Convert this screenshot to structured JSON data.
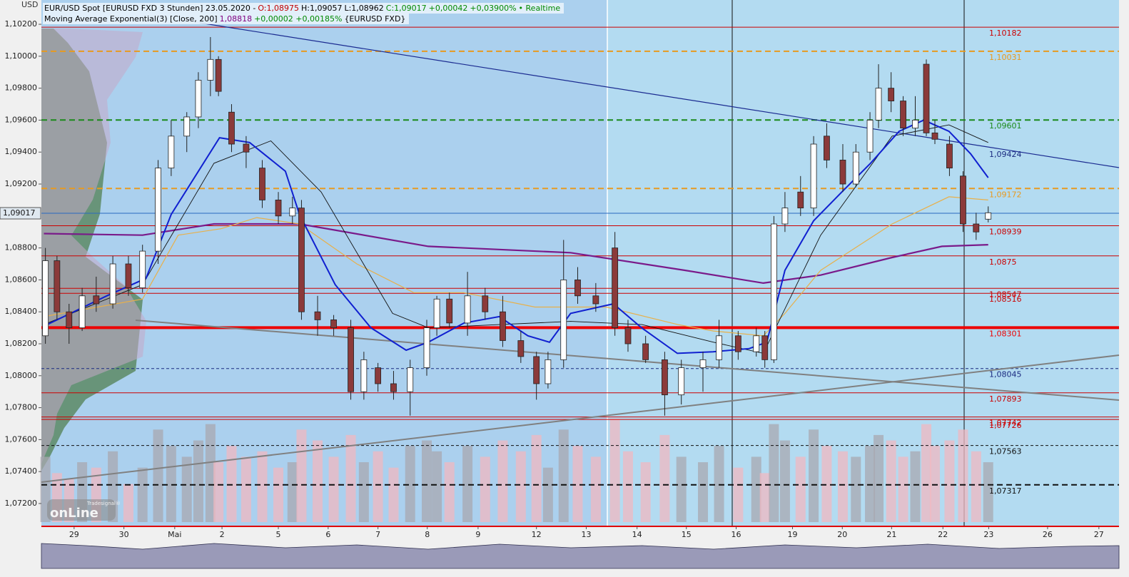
{
  "chart_data": {
    "type": "candlestick",
    "currency": "USD",
    "legend_lines": [
      [
        {
          "text": "EUR/USD Spot [EURUSD FXD 3 Stunden] 23.05.2020 -",
          "color": "#000000"
        },
        {
          "text": "O:1,08975",
          "color": "#c00000"
        },
        {
          "text": "H:1,09057",
          "color": "#000000"
        },
        {
          "text": "L:1,08962",
          "color": "#000000"
        },
        {
          "text": "C:1,09017",
          "color": "#008a00"
        },
        {
          "text": "+0,00042",
          "color": "#008a00"
        },
        {
          "text": "+0,03900%",
          "color": "#008a00"
        },
        {
          "text": "• Realtime",
          "color": "#008a00"
        }
      ],
      [
        {
          "text": "Moving Average Exponential(3) [Close, 200]",
          "color": "#000000"
        },
        {
          "text": "1,08818",
          "color": "#800080"
        },
        {
          "text": "+0,00002 +0,00185%",
          "color": "#008a00"
        },
        {
          "text": "{EURUSD FXD}",
          "color": "#000000"
        }
      ]
    ],
    "ylim": [
      1.07057,
      1.10352
    ],
    "yticks": [
      {
        "value": 1.102,
        "label": "1,10200"
      },
      {
        "value": 1.1,
        "label": "1,10000"
      },
      {
        "value": 1.098,
        "label": "1,09800"
      },
      {
        "value": 1.096,
        "label": "1,09600"
      },
      {
        "value": 1.094,
        "label": "1,09400"
      },
      {
        "value": 1.092,
        "label": "1,09200"
      },
      {
        "value": 1.088,
        "label": "1,08800"
      },
      {
        "value": 1.086,
        "label": "1,08600"
      },
      {
        "value": 1.084,
        "label": "1,08400"
      },
      {
        "value": 1.082,
        "label": "1,08200"
      },
      {
        "value": 1.08,
        "label": "1,08000"
      },
      {
        "value": 1.078,
        "label": "1,07800"
      },
      {
        "value": 1.076,
        "label": "1,07600"
      },
      {
        "value": 1.074,
        "label": "1,07400"
      },
      {
        "value": 1.072,
        "label": "1,07200"
      }
    ],
    "xlim": [
      -0.65,
      20.77
    ],
    "xticks": [
      {
        "value": 0,
        "label": "29"
      },
      {
        "value": 0.99,
        "label": "30"
      },
      {
        "value": 2.0,
        "label": "Mai"
      },
      {
        "value": 2.94,
        "label": "2"
      },
      {
        "value": 4.06,
        "label": "5"
      },
      {
        "value": 5.05,
        "label": "6"
      },
      {
        "value": 6.04,
        "label": "7"
      },
      {
        "value": 7.02,
        "label": "8"
      },
      {
        "value": 8.03,
        "label": "9"
      },
      {
        "value": 9.19,
        "label": "12"
      },
      {
        "value": 10.18,
        "label": "13"
      },
      {
        "value": 11.19,
        "label": "14"
      },
      {
        "value": 12.17,
        "label": "15"
      },
      {
        "value": 13.16,
        "label": "16"
      },
      {
        "value": 14.28,
        "label": "19"
      },
      {
        "value": 15.27,
        "label": "20"
      },
      {
        "value": 16.25,
        "label": "21"
      },
      {
        "value": 17.27,
        "label": "22"
      },
      {
        "value": 18.18,
        "label": "23"
      },
      {
        "value": 19.35,
        "label": "26"
      },
      {
        "value": 20.37,
        "label": "27"
      }
    ],
    "last_price": {
      "value": 1.09017,
      "label": "1,09017"
    },
    "up_color": "#ffffff",
    "down_color": "#8b3a3a",
    "x": [
      -0.57,
      -0.34,
      -0.1,
      0.16,
      0.44,
      0.77,
      1.08,
      1.36,
      1.67,
      1.93,
      2.24,
      2.47,
      2.71,
      2.87,
      3.13,
      3.42,
      3.74,
      4.06,
      4.34,
      4.52,
      4.84,
      5.16,
      5.5,
      5.76,
      6.04,
      6.35,
      6.68,
      7.01,
      7.21,
      7.46,
      7.82,
      8.17,
      8.52,
      8.88,
      9.19,
      9.42,
      9.73,
      10.01,
      10.37,
      10.75,
      11.01,
      11.36,
      11.74,
      12.07,
      12.5,
      12.82,
      13.2,
      13.56,
      13.73,
      13.91,
      14.13,
      14.44,
      14.7,
      14.96,
      15.28,
      15.54,
      15.82,
      15.99,
      16.24,
      16.48,
      16.72,
      16.94,
      17.11,
      17.4,
      17.67,
      17.93,
      18.17
    ],
    "open": [
      1.0825,
      1.0872,
      1.084,
      1.083,
      1.085,
      1.0845,
      1.087,
      1.0855,
      1.0878,
      1.093,
      1.095,
      1.0962,
      1.0985,
      1.0998,
      1.0965,
      1.0945,
      1.093,
      1.091,
      1.09,
      1.0905,
      1.084,
      1.0835,
      1.083,
      1.079,
      1.0805,
      1.0795,
      1.079,
      1.0805,
      1.083,
      1.0848,
      1.0833,
      1.085,
      1.084,
      1.0822,
      1.0812,
      1.0795,
      1.081,
      1.086,
      1.085,
      1.088,
      1.083,
      1.082,
      1.081,
      1.0788,
      1.0805,
      1.081,
      1.0825,
      1.0815,
      1.0825,
      1.081,
      1.0895,
      1.0915,
      1.0905,
      1.095,
      1.0935,
      1.092,
      1.094,
      1.096,
      1.098,
      1.0972,
      1.0955,
      1.0995,
      1.0952,
      1.0945,
      1.0925,
      1.0895,
      1.0898
    ],
    "high": [
      1.088,
      1.0875,
      1.0845,
      1.0855,
      1.0862,
      1.0875,
      1.0875,
      1.0882,
      1.0935,
      1.096,
      1.0965,
      1.099,
      1.1012,
      1.1,
      1.097,
      1.095,
      1.0935,
      1.0915,
      1.0912,
      1.091,
      1.085,
      1.0838,
      1.0835,
      1.0815,
      1.0808,
      1.0803,
      1.081,
      1.0835,
      1.085,
      1.0852,
      1.0865,
      1.0855,
      1.085,
      1.0828,
      1.0815,
      1.0815,
      1.0885,
      1.0868,
      1.0858,
      1.089,
      1.0835,
      1.0825,
      1.0815,
      1.081,
      1.0815,
      1.0835,
      1.0828,
      1.083,
      1.0828,
      1.09,
      1.0915,
      1.0925,
      1.095,
      1.0958,
      1.0945,
      1.0945,
      1.0965,
      1.0995,
      1.099,
      1.0975,
      1.0975,
      1.0998,
      1.096,
      1.095,
      1.0928,
      1.0902,
      1.0906
    ],
    "low": [
      1.082,
      1.0835,
      1.082,
      1.0828,
      1.084,
      1.0842,
      1.085,
      1.0852,
      1.087,
      1.0925,
      1.094,
      1.0955,
      1.0975,
      1.0975,
      1.094,
      1.093,
      1.0905,
      1.0895,
      1.0895,
      1.0835,
      1.0825,
      1.0825,
      1.0785,
      1.0785,
      1.079,
      1.0785,
      1.0775,
      1.08,
      1.0825,
      1.083,
      1.0825,
      1.0835,
      1.0818,
      1.0808,
      1.0785,
      1.0792,
      1.0805,
      1.0845,
      1.084,
      1.0825,
      1.0815,
      1.0808,
      1.0775,
      1.0782,
      1.079,
      1.0805,
      1.081,
      1.0812,
      1.0805,
      1.0808,
      1.089,
      1.09,
      1.09,
      1.093,
      1.0915,
      1.0918,
      1.0935,
      1.0955,
      1.0965,
      1.095,
      1.095,
      1.095,
      1.0945,
      1.0925,
      1.089,
      1.0885,
      1.0896
    ],
    "close": [
      1.0872,
      1.084,
      1.083,
      1.085,
      1.0845,
      1.087,
      1.0855,
      1.0878,
      1.093,
      1.095,
      1.0962,
      1.0985,
      1.0998,
      1.0978,
      1.0945,
      1.094,
      1.091,
      1.09,
      1.0905,
      1.084,
      1.0835,
      1.083,
      1.079,
      1.081,
      1.0795,
      1.079,
      1.0805,
      1.083,
      1.0848,
      1.0833,
      1.085,
      1.084,
      1.0822,
      1.0812,
      1.0795,
      1.081,
      1.086,
      1.085,
      1.0845,
      1.083,
      1.082,
      1.081,
      1.0788,
      1.0805,
      1.081,
      1.0825,
      1.0815,
      1.0825,
      1.081,
      1.0895,
      1.0905,
      1.0905,
      1.0945,
      1.0935,
      1.092,
      1.094,
      1.096,
      1.098,
      1.0972,
      1.0955,
      1.096,
      1.0952,
      1.0948,
      1.093,
      1.0895,
      1.089,
      1.0902
    ],
    "volume": [
      60,
      45,
      40,
      55,
      50,
      65,
      35,
      50,
      85,
      70,
      60,
      75,
      90,
      55,
      70,
      60,
      65,
      50,
      55,
      85,
      75,
      60,
      80,
      55,
      65,
      50,
      70,
      75,
      65,
      55,
      70,
      60,
      75,
      65,
      80,
      50,
      85,
      70,
      60,
      95,
      65,
      55,
      80,
      60,
      55,
      70,
      50,
      60,
      45,
      90,
      75,
      60,
      85,
      70,
      65,
      60,
      70,
      80,
      75,
      60,
      65,
      90,
      70,
      75,
      85,
      65,
      55
    ],
    "indicators": [
      {
        "color": "#7a1a8a",
        "width": 2.2,
        "x": [
          -0.6,
          1.36,
          2.78,
          4.48,
          7.04,
          9.87,
          12.14,
          13.7,
          14.84,
          16.26,
          17.25,
          18.17
        ],
        "values": [
          1.0889,
          1.0888,
          1.0895,
          1.0895,
          1.0881,
          1.0877,
          1.0866,
          1.0858,
          1.0863,
          1.0874,
          1.0881,
          1.0882
        ]
      },
      {
        "color": "#e8b04a",
        "width": 1.2,
        "x": [
          -0.6,
          1.36,
          2.07,
          2.92,
          3.63,
          4.48,
          5.62,
          6.75,
          7.74,
          9.16,
          10.58,
          12.0,
          12.71,
          13.7,
          14.13,
          14.84,
          16.26,
          17.39,
          18.17
        ],
        "values": [
          1.0837,
          1.0848,
          1.0888,
          1.0892,
          1.0899,
          1.0895,
          1.087,
          1.0852,
          1.0852,
          1.0843,
          1.0843,
          1.0832,
          1.0828,
          1.0825,
          1.0839,
          1.0866,
          1.0895,
          1.0912,
          1.091
        ]
      },
      {
        "color": "#111111",
        "width": 0.9,
        "x": [
          -0.6,
          1.36,
          2.78,
          3.91,
          4.91,
          6.33,
          7.04,
          8.45,
          9.87,
          11.29,
          12.71,
          13.7,
          14.84,
          16.26,
          17.39,
          18.17
        ],
        "values": [
          1.0832,
          1.0857,
          1.0933,
          1.0947,
          1.0915,
          1.0839,
          1.083,
          1.0832,
          1.0834,
          1.0832,
          1.0821,
          1.0814,
          1.0888,
          1.095,
          1.0957,
          1.0946
        ]
      },
      {
        "color": "#1020d0",
        "width": 2,
        "x": [
          -0.6,
          0.65,
          1.43,
          1.93,
          2.89,
          3.49,
          4.2,
          4.48,
          5.19,
          5.9,
          6.6,
          7.04,
          7.75,
          8.45,
          9.02,
          9.45,
          9.87,
          10.72,
          11.28,
          11.99,
          12.7,
          13.42,
          13.77,
          14.13,
          14.7,
          15.26,
          15.83,
          16.4,
          16.89,
          17.39,
          17.82,
          18.17
        ],
        "values": [
          1.0831,
          1.085,
          1.0861,
          1.0901,
          1.0949,
          1.0946,
          1.0928,
          1.0901,
          1.0857,
          1.083,
          1.0816,
          1.0821,
          1.0833,
          1.0837,
          1.0825,
          1.0821,
          1.0839,
          1.0845,
          1.083,
          1.0814,
          1.0815,
          1.0817,
          1.0821,
          1.0866,
          1.0897,
          1.0915,
          1.0933,
          1.0953,
          1.096,
          1.0953,
          1.0939,
          1.0924
        ]
      }
    ],
    "levels": [
      {
        "value": 1.10182,
        "label": "1,10182",
        "color": "#cc0000",
        "dash": "none",
        "width": 1
      },
      {
        "value": 1.10031,
        "label": "1,10031",
        "color": "#e89a20",
        "dash": "8,5",
        "width": 2
      },
      {
        "value": 1.09601,
        "label": "1,09601",
        "color": "#1a8a1a",
        "dash": "8,5",
        "width": 2
      },
      {
        "value": 1.09424,
        "label": "1,09424",
        "color": "#1a2a80",
        "dash": "label",
        "width": 0
      },
      {
        "value": 1.09172,
        "label": "1,09172",
        "color": "#e89a20",
        "dash": "8,5",
        "width": 2
      },
      {
        "value": 1.08939,
        "label": "1,08939",
        "color": "#cc0000",
        "dash": "none",
        "width": 1
      },
      {
        "value": 1.0875,
        "label": "1,0875",
        "color": "#cc0000",
        "dash": "none",
        "width": 1
      },
      {
        "value": 1.08547,
        "label": "1,08547",
        "color": "#cc0000",
        "dash": "none",
        "width": 1
      },
      {
        "value": 1.08516,
        "label": "1,08516",
        "color": "#cc0000",
        "dash": "none",
        "width": 1
      },
      {
        "value": 1.08301,
        "label": "1,08301",
        "color": "#ee0000",
        "dash": "none",
        "width": 4
      },
      {
        "value": 1.08045,
        "label": "1,08045",
        "color": "#1a2a80",
        "dash": "4,3",
        "width": 1
      },
      {
        "value": 1.07893,
        "label": "1,07893",
        "color": "#cc0000",
        "dash": "none",
        "width": 1
      },
      {
        "value": 1.07742,
        "label": "1,07742",
        "color": "#cc0000",
        "dash": "none",
        "width": 1
      },
      {
        "value": 1.07726,
        "label": "1,07726",
        "color": "#cc0000",
        "dash": "none",
        "width": 1
      },
      {
        "value": 1.07563,
        "label": "1,07563",
        "color": "#111111",
        "dash": "4,3",
        "width": 1
      },
      {
        "value": 1.07317,
        "label": "1,07317",
        "color": "#111111",
        "dash": "8,5",
        "width": 2
      }
    ],
    "logo_small": "Tradesignal®",
    "logo": "onLine"
  }
}
